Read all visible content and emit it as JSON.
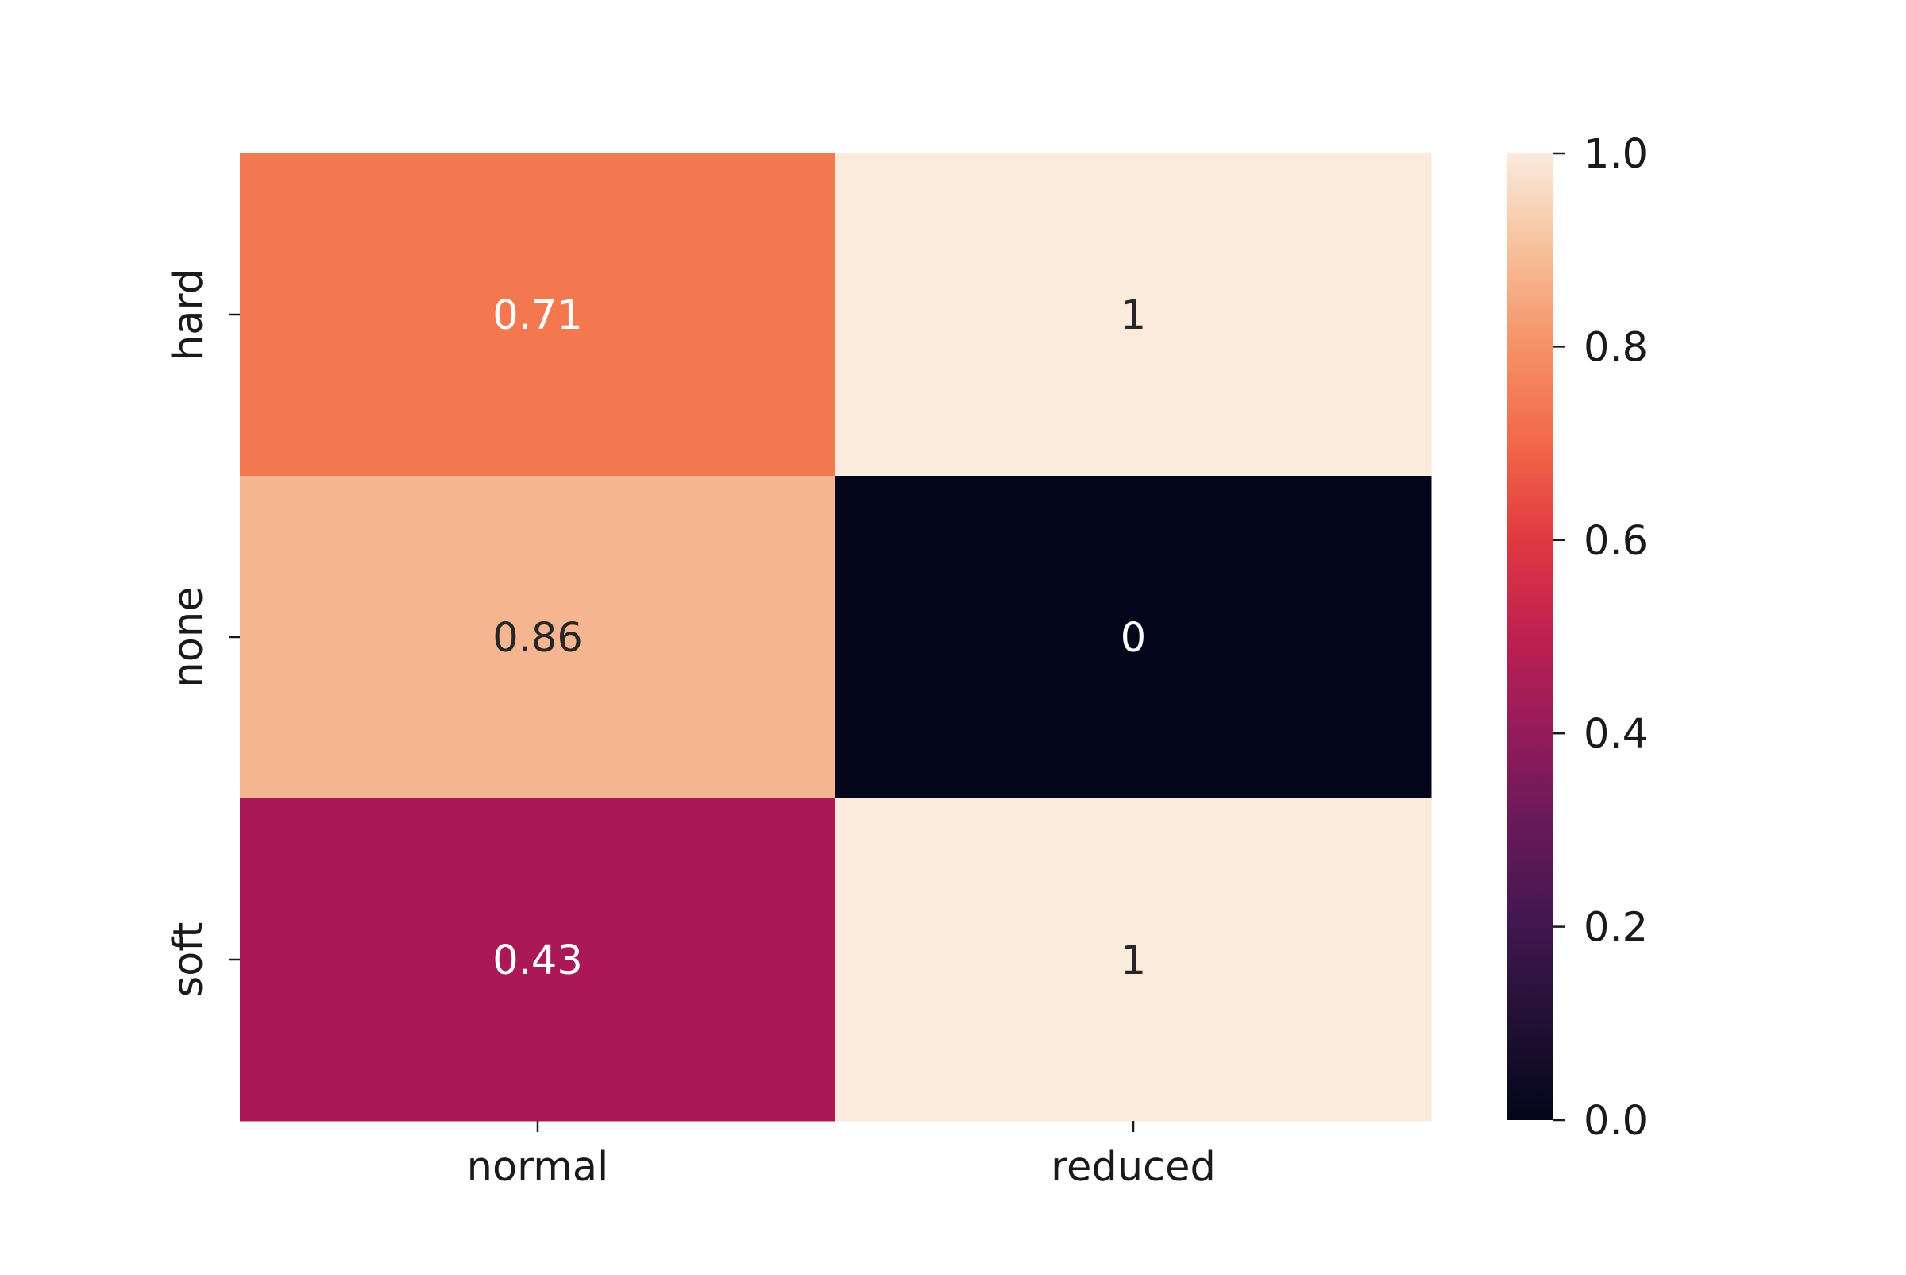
{
  "chart_data": {
    "type": "heatmap",
    "title": "",
    "xlabel": "",
    "ylabel": "",
    "x_categories": [
      "normal",
      "reduced"
    ],
    "y_categories": [
      "hard",
      "none",
      "soft"
    ],
    "values": [
      [
        0.71,
        1
      ],
      [
        0.86,
        0
      ],
      [
        0.43,
        1
      ]
    ],
    "annotations": [
      [
        "0.71",
        "1"
      ],
      [
        "0.86",
        "0"
      ],
      [
        "0.43",
        "1"
      ]
    ],
    "colormap": "rocket",
    "colorbar": {
      "range": [
        0.0,
        1.0
      ],
      "ticks": [
        0.0,
        0.2,
        0.4,
        0.6,
        0.8,
        1.0
      ],
      "tick_labels": [
        "0.0",
        "0.2",
        "0.4",
        "0.6",
        "0.8",
        "1.0"
      ]
    },
    "cell_colors": {
      "0.71": "#f3774f",
      "1": "#faebdd",
      "0.86": "#f5b591",
      "0": "#03051a",
      "0.43": "#ab1857"
    },
    "grid": false,
    "legend": "colorbar-right"
  }
}
